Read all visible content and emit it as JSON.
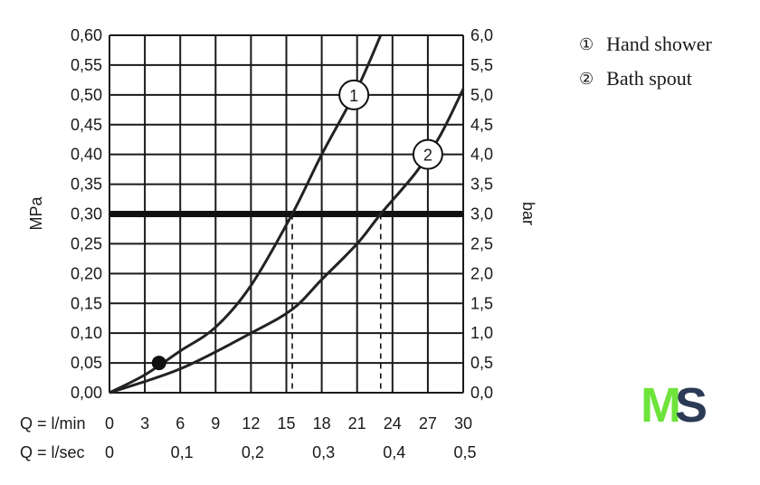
{
  "chart_data": {
    "type": "line",
    "ylabel_left": "MPa",
    "ylabel_right": "bar",
    "ylim": [
      0,
      0.6
    ],
    "y_ticks": [
      "0,00",
      "0,05",
      "0,10",
      "0,15",
      "0,20",
      "0,25",
      "0,30",
      "0,35",
      "0,40",
      "0,45",
      "0,50",
      "0,55",
      "0,60"
    ],
    "y2_ticks": [
      "0,0",
      "0,5",
      "1,0",
      "1,5",
      "2,0",
      "2,5",
      "3,0",
      "3,5",
      "4,0",
      "4,5",
      "5,0",
      "5,5",
      "6,0"
    ],
    "xlim": [
      0,
      30
    ],
    "x_label": "Q = l/min",
    "x_ticks": [
      "0",
      "3",
      "6",
      "9",
      "12",
      "15",
      "18",
      "21",
      "24",
      "27",
      "30"
    ],
    "x2_label": "Q = l/sec",
    "x2_ticks": [
      "0",
      "0,1",
      "0,2",
      "0,3",
      "0,4",
      "0,5"
    ],
    "reference_line": {
      "y": 0.3
    },
    "series": [
      {
        "marker": "1",
        "color": "#222222",
        "x": [
          0,
          3,
          6,
          9,
          12,
          15.5,
          18,
          21,
          23
        ],
        "y": [
          0,
          0.03,
          0.07,
          0.11,
          0.18,
          0.3,
          0.4,
          0.51,
          0.6
        ]
      },
      {
        "marker": "2",
        "color": "#222222",
        "x": [
          0,
          6,
          12,
          15.5,
          18,
          21,
          23,
          26,
          28,
          30
        ],
        "y": [
          0,
          0.04,
          0.1,
          0.14,
          0.19,
          0.25,
          0.3,
          0.37,
          0.43,
          0.51
        ]
      }
    ],
    "drop_lines_x": [
      15.5,
      23
    ],
    "point": {
      "x": 4.2,
      "y": 0.05
    },
    "grid": true
  },
  "legend": [
    {
      "mark": "①",
      "label": "Hand shower"
    },
    {
      "mark": "②",
      "label": "Bath spout"
    }
  ],
  "logo": {
    "left_letter": "M",
    "right_letter": "S",
    "left_color": "#6ee33a",
    "right_color": "#2b3a55"
  }
}
